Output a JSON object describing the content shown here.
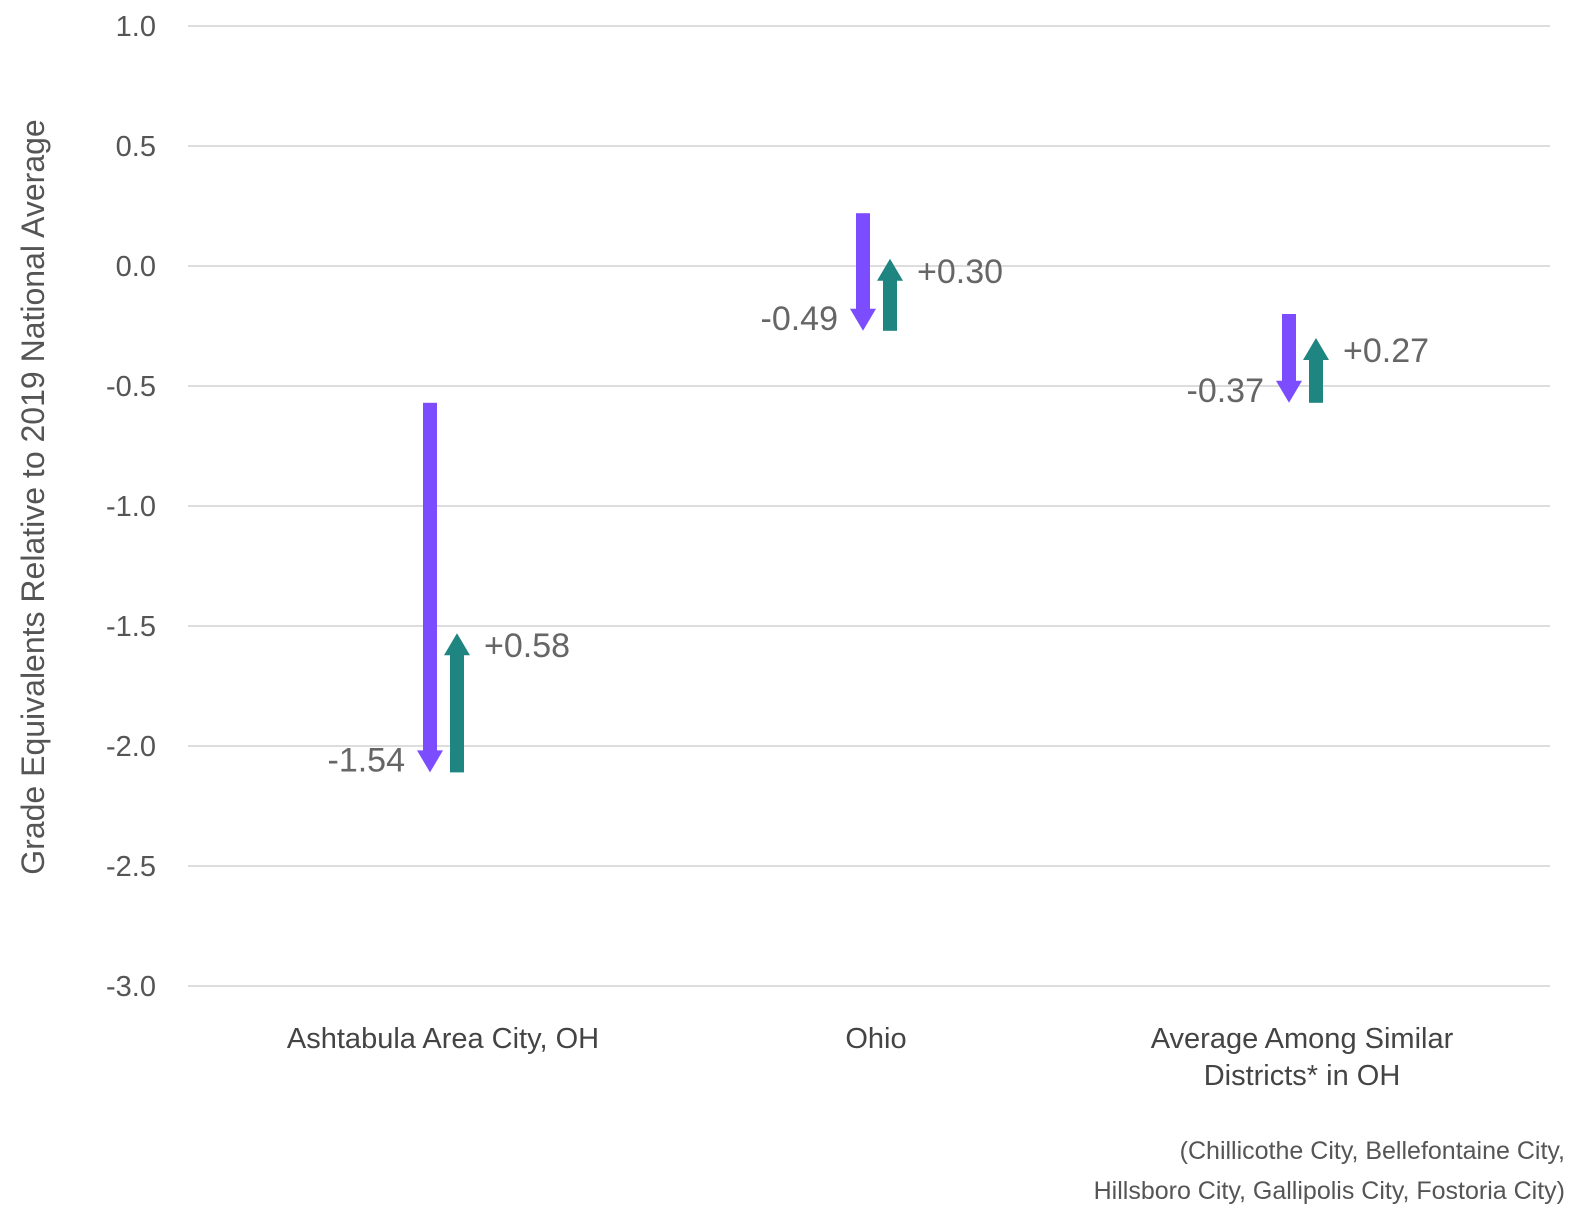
{
  "chart_data": {
    "type": "arrow",
    "ylabel": "Grade Equivalents Relative to 2019 National Average",
    "ylim": [
      -3.0,
      1.0
    ],
    "yticks": [
      1.0,
      0.5,
      0.0,
      -0.5,
      -1.0,
      -1.5,
      -2.0,
      -2.5,
      -3.0
    ],
    "ytick_labels": [
      "1.0",
      "0.5",
      "0.0",
      "-0.5",
      "-1.0",
      "-1.5",
      "-2.0",
      "-2.5",
      "-3.0"
    ],
    "grid": true,
    "categories": [
      {
        "label_lines": [
          "Ashtabula Area City, OH"
        ],
        "start": -0.57,
        "decline": -1.54,
        "decline_label": "-1.54",
        "recovery": 0.58,
        "recovery_label": "+0.58"
      },
      {
        "label_lines": [
          "Ohio"
        ],
        "start": 0.22,
        "decline": -0.49,
        "decline_label": "-0.49",
        "recovery": 0.3,
        "recovery_label": "+0.30"
      },
      {
        "label_lines": [
          "Average Among Similar",
          "Districts* in OH"
        ],
        "start": -0.2,
        "decline": -0.37,
        "decline_label": "-0.37",
        "recovery": 0.27,
        "recovery_label": "+0.27"
      }
    ],
    "colors": {
      "decline": "#7c4dff",
      "recovery": "#1f8580"
    },
    "note_lines": [
      "(Chillicothe City, Bellefontaine City,",
      "Hillsboro City, Gallipolis City, Fostoria City)"
    ]
  }
}
